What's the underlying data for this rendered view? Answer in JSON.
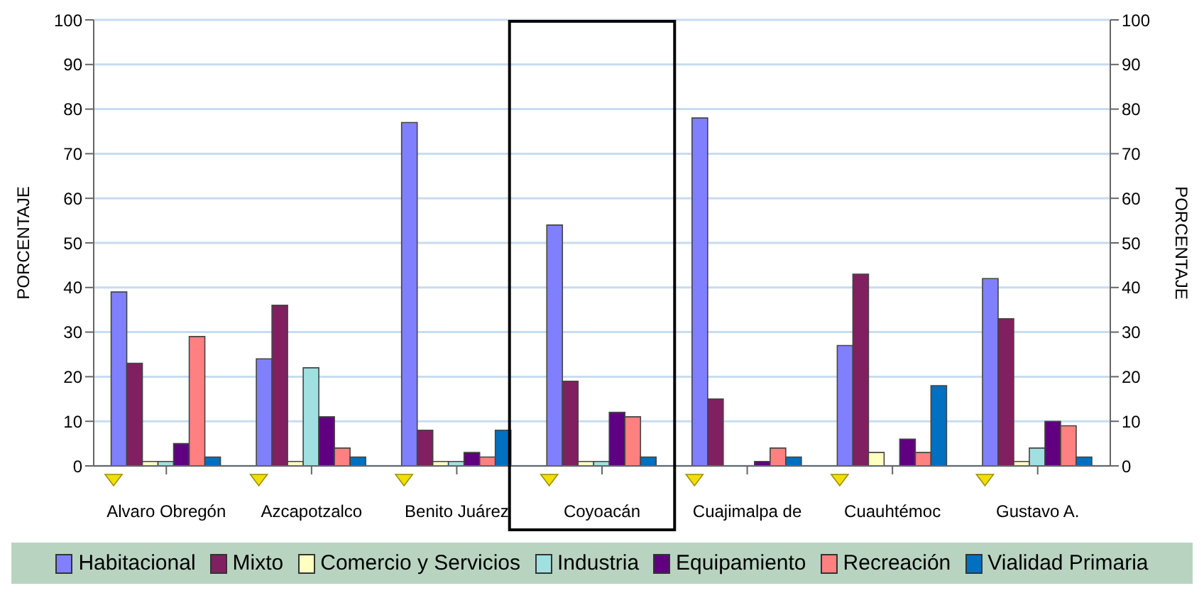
{
  "chart_data": {
    "type": "bar",
    "categories": [
      "Alvaro Obregón",
      "Azcapotzalco",
      "Benito Juárez",
      "Coyoacán",
      "Cuajimalpa de",
      "Cuauhtémoc",
      "Gustavo A."
    ],
    "series": [
      {
        "name": "Habitacional",
        "color": "#8080ff",
        "values": [
          39,
          24,
          77,
          54,
          78,
          27,
          42
        ]
      },
      {
        "name": "Mixto",
        "color": "#802060",
        "values": [
          23,
          36,
          8,
          19,
          15,
          43,
          33
        ]
      },
      {
        "name": "Comercio y Servicios",
        "color": "#ffffc0",
        "values": [
          1,
          1,
          1,
          1,
          0,
          3,
          1
        ]
      },
      {
        "name": "Industria",
        "color": "#a0e0e0",
        "values": [
          1,
          22,
          1,
          1,
          0,
          0,
          4
        ]
      },
      {
        "name": "Equipamiento",
        "color": "#600080",
        "values": [
          5,
          11,
          3,
          12,
          1,
          6,
          10
        ]
      },
      {
        "name": "Recreación",
        "color": "#ff8080",
        "values": [
          29,
          4,
          2,
          11,
          4,
          3,
          9
        ]
      },
      {
        "name": "Vialidad Primaria",
        "color": "#0070c0",
        "values": [
          2,
          2,
          8,
          2,
          2,
          18,
          2
        ]
      }
    ],
    "ylabel": "PORCENTAJE",
    "y2label": "PORCENTAJE",
    "ylim": [
      0,
      100
    ],
    "yticks": [
      0,
      10,
      20,
      30,
      40,
      50,
      60,
      70,
      80,
      90,
      100
    ],
    "y2lim": [
      0,
      100
    ],
    "y2ticks": [
      0,
      10,
      20,
      30,
      40,
      50,
      60,
      70,
      80,
      90,
      100
    ],
    "grid": "y",
    "legend": "bottom"
  }
}
